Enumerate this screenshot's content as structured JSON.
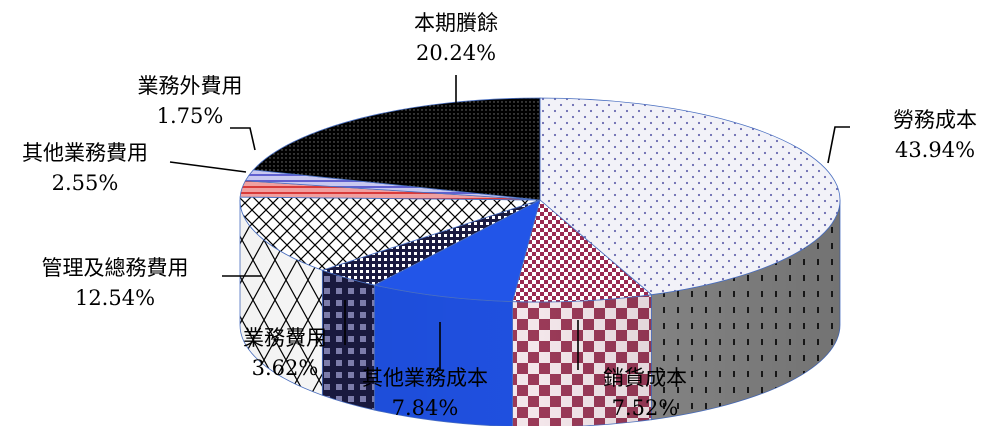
{
  "chart_data": {
    "type": "pie",
    "title": "",
    "style": "3d-exploded-look pie with patterned fills",
    "slices": [
      {
        "name": "勞務成本",
        "value": 43.94,
        "percent_label": "43.94%",
        "color": "#8a8ac0",
        "pattern": "dots-blue"
      },
      {
        "name": "銷貨成本",
        "value": 7.52,
        "percent_label": "7.52%",
        "color": "#9a2a50",
        "pattern": "checker-maroon"
      },
      {
        "name": "其他業務成本",
        "value": 7.84,
        "percent_label": "7.84%",
        "color": "#2255e8",
        "pattern": "solid-blue"
      },
      {
        "name": "業務費用",
        "value": 3.62,
        "percent_label": "3.62%",
        "color": "#1a1a4a",
        "pattern": "dense-checker-dark"
      },
      {
        "name": "管理及總務費用",
        "value": 12.54,
        "percent_label": "12.54%",
        "color": "#000000",
        "pattern": "diamond-lattice"
      },
      {
        "name": "其他業務費用",
        "value": 2.55,
        "percent_label": "2.55%",
        "color": "#e86a6a",
        "pattern": "stripes-red"
      },
      {
        "name": "業務外費用",
        "value": 1.75,
        "percent_label": "1.75%",
        "color": "#7070d8",
        "pattern": "stripes-blue"
      },
      {
        "name": "本期賸餘",
        "value": 20.24,
        "percent_label": "20.24%",
        "color": "#111111",
        "pattern": "dots-dark"
      }
    ]
  }
}
